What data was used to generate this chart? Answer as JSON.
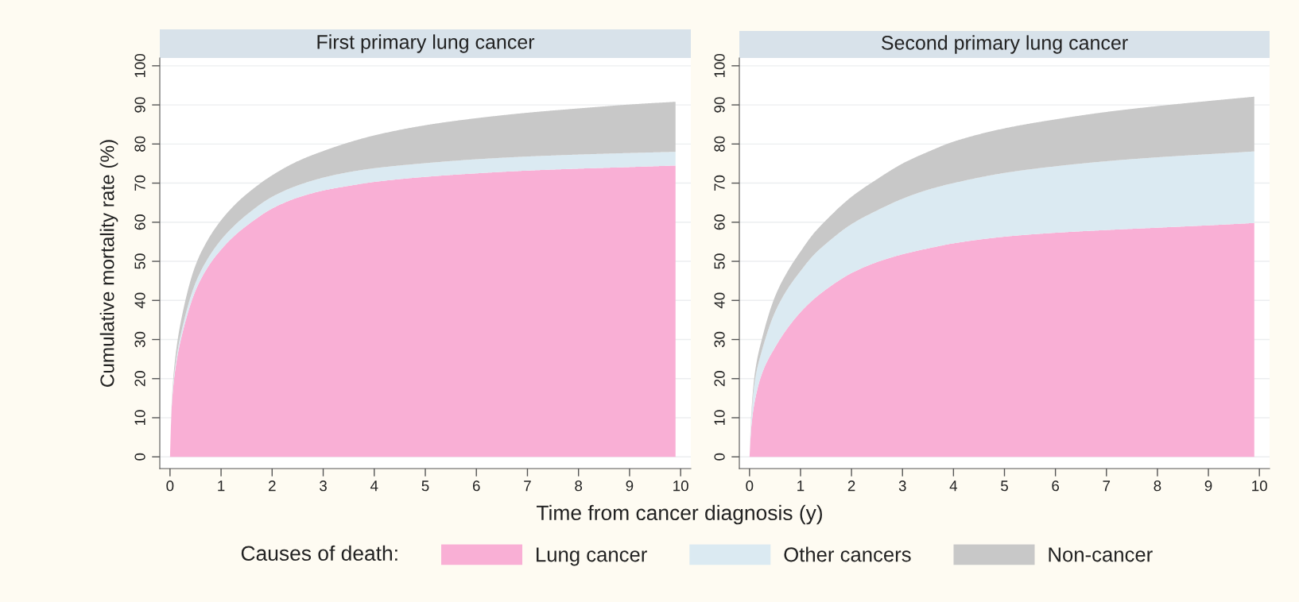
{
  "chart_data": [
    {
      "type": "area",
      "title": "First primary lung cancer",
      "xlabel": "Time from cancer diagnosis (y)",
      "ylabel": "Cumulative mortality rate (%)",
      "legend_title": "Causes of death:",
      "legend": "bottom",
      "stacked": true,
      "grid": "y",
      "x": [
        0,
        0.03,
        0.1,
        0.25,
        0.5,
        0.75,
        1,
        1.25,
        1.5,
        2,
        2.5,
        3,
        3.5,
        4,
        5,
        6,
        7,
        8,
        9,
        9.9
      ],
      "series": [
        {
          "name": "Lung cancer",
          "color": "#f9afd5",
          "values": [
            0,
            12,
            22,
            32,
            42.5,
            48.7,
            53,
            56.4,
            59.1,
            63.5,
            66.3,
            68.1,
            69.3,
            70.3,
            71.6,
            72.5,
            73.2,
            73.7,
            74.1,
            74.5
          ]
        },
        {
          "name": "Other cancers",
          "color": "#dbeaf2",
          "values": [
            0,
            0.5,
            1,
            1.5,
            2,
            2.2,
            2.5,
            2.6,
            2.8,
            3,
            3.1,
            3.3,
            3.5,
            3.5,
            3.5,
            3.6,
            3.6,
            3.6,
            3.6,
            3.5
          ]
        },
        {
          "name": "Non-cancer",
          "color": "#c8c8c8",
          "values": [
            0,
            0.5,
            2,
            3.5,
            4.5,
            4.8,
            5,
            5.2,
            5.3,
            5.5,
            6.2,
            6.8,
            7.6,
            8.4,
            9.7,
            10.5,
            11.2,
            11.8,
            12.4,
            12.8
          ]
        }
      ],
      "xlim": [
        -0.2,
        10.2
      ],
      "ylim": [
        -3,
        102
      ],
      "xticks": [
        0,
        1,
        2,
        3,
        4,
        5,
        6,
        7,
        8,
        9,
        10
      ],
      "yticks": [
        0,
        10,
        20,
        30,
        40,
        50,
        60,
        70,
        80,
        90,
        100
      ]
    },
    {
      "type": "area",
      "title": "Second primary lung cancer",
      "stacked": true,
      "grid": "y",
      "x": [
        0,
        0.03,
        0.1,
        0.25,
        0.5,
        0.75,
        1,
        1.25,
        1.5,
        2,
        2.5,
        3,
        3.5,
        4,
        5,
        6,
        7,
        8,
        9,
        9.9
      ],
      "series": [
        {
          "color": "#f9afd5",
          "values": [
            0,
            7,
            14,
            21.5,
            28,
            33,
            37,
            40.2,
            42.8,
            47,
            49.8,
            51.8,
            53.3,
            54.6,
            56.3,
            57.3,
            58,
            58.6,
            59.2,
            59.8
          ]
        },
        {
          "color": "#dbeaf2",
          "values": [
            0,
            2,
            5,
            6,
            9,
            10,
            10.5,
            11.3,
            11.7,
            12.5,
            13.2,
            14.2,
            15,
            15.4,
            16.3,
            17,
            17.6,
            18,
            18.2,
            18.3
          ]
        },
        {
          "color": "#c8c8c8",
          "values": [
            0,
            1,
            2,
            3,
            4,
            4.5,
            5,
            5.5,
            6,
            7,
            8,
            9,
            9.7,
            10.6,
            11.4,
            12,
            12.6,
            13.1,
            13.6,
            14
          ]
        }
      ],
      "xlim": [
        -0.2,
        10.2
      ],
      "ylim": [
        -3,
        102
      ],
      "xticks": [
        0,
        1,
        2,
        3,
        4,
        5,
        6,
        7,
        8,
        9,
        10
      ],
      "yticks": [
        0,
        10,
        20,
        30,
        40,
        50,
        60,
        70,
        80,
        90,
        100
      ]
    }
  ]
}
